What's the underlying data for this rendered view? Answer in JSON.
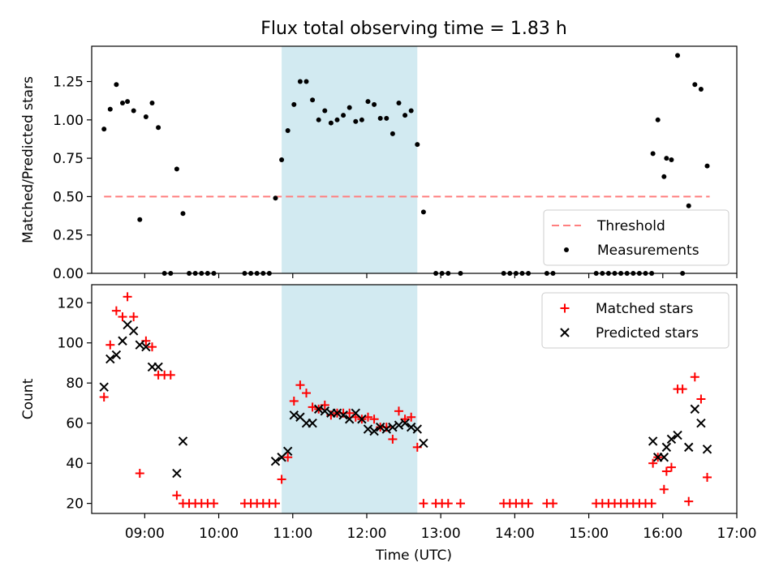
{
  "title": "Flux total observing time = 1.83 h",
  "xlabel": "Time (UTC)",
  "colors": {
    "threshold": "#ff7f7f",
    "highlight": "#add8e6",
    "matched": "#ff0000",
    "predicted": "#000000",
    "measurements": "#000000"
  },
  "chart_data": [
    {
      "type": "scatter",
      "ylabel": "Matched/Predicted stars",
      "xlim": [
        "08:17",
        "17:00"
      ],
      "ylim": [
        0,
        1.48
      ],
      "yticks": [
        0,
        0.25,
        0.5,
        0.75,
        1.0,
        1.25
      ],
      "ytick_labels": [
        "0.00",
        "0.25",
        "0.50",
        "0.75",
        "1.00",
        "1.25"
      ],
      "xticks": [
        "09:00",
        "10:00",
        "11:00",
        "12:00",
        "13:00",
        "14:00",
        "15:00",
        "16:00",
        "17:00"
      ],
      "highlight_span": [
        "10:51",
        "12:41"
      ],
      "grid": false,
      "legend": {
        "position": "lower-right",
        "entries": [
          "Threshold",
          "Measurements"
        ]
      },
      "threshold": {
        "name": "Threshold",
        "value": 0.5,
        "x_range": [
          "08:27",
          "16:38"
        ],
        "style": "dashed"
      },
      "series": [
        {
          "name": "Measurements",
          "marker": "dot",
          "points": [
            [
              "08:27",
              0.94
            ],
            [
              "08:32",
              1.07
            ],
            [
              "08:37",
              1.23
            ],
            [
              "08:42",
              1.11
            ],
            [
              "08:46",
              1.12
            ],
            [
              "08:51",
              1.06
            ],
            [
              "08:56",
              0.35
            ],
            [
              "09:01",
              1.02
            ],
            [
              "09:06",
              1.11
            ],
            [
              "09:11",
              0.95
            ],
            [
              "09:16",
              0.0
            ],
            [
              "09:21",
              0.0
            ],
            [
              "09:26",
              0.68
            ],
            [
              "09:31",
              0.39
            ],
            [
              "09:36",
              0.0
            ],
            [
              "09:41",
              0.0
            ],
            [
              "09:46",
              0.0
            ],
            [
              "09:51",
              0.0
            ],
            [
              "09:56",
              0.0
            ],
            [
              "10:21",
              0.0
            ],
            [
              "10:26",
              0.0
            ],
            [
              "10:31",
              0.0
            ],
            [
              "10:36",
              0.0
            ],
            [
              "10:41",
              0.0
            ],
            [
              "10:46",
              0.49
            ],
            [
              "10:51",
              0.74
            ],
            [
              "10:56",
              0.93
            ],
            [
              "11:01",
              1.1
            ],
            [
              "11:06",
              1.25
            ],
            [
              "11:11",
              1.25
            ],
            [
              "11:16",
              1.13
            ],
            [
              "11:21",
              1.0
            ],
            [
              "11:26",
              1.06
            ],
            [
              "11:31",
              0.98
            ],
            [
              "11:36",
              1.0
            ],
            [
              "11:41",
              1.03
            ],
            [
              "11:46",
              1.08
            ],
            [
              "11:51",
              0.99
            ],
            [
              "11:56",
              1.0
            ],
            [
              "12:01",
              1.12
            ],
            [
              "12:06",
              1.1
            ],
            [
              "12:11",
              1.01
            ],
            [
              "12:16",
              1.01
            ],
            [
              "12:21",
              0.91
            ],
            [
              "12:26",
              1.11
            ],
            [
              "12:31",
              1.03
            ],
            [
              "12:36",
              1.06
            ],
            [
              "12:41",
              0.84
            ],
            [
              "12:46",
              0.4
            ],
            [
              "12:56",
              0.0
            ],
            [
              "13:01",
              0.0
            ],
            [
              "13:06",
              0.0
            ],
            [
              "13:16",
              0.0
            ],
            [
              "13:51",
              0.0
            ],
            [
              "13:56",
              0.0
            ],
            [
              "14:01",
              0.0
            ],
            [
              "14:06",
              0.0
            ],
            [
              "14:11",
              0.0
            ],
            [
              "14:26",
              0.0
            ],
            [
              "14:31",
              0.0
            ],
            [
              "15:06",
              0.0
            ],
            [
              "15:11",
              0.0
            ],
            [
              "15:16",
              0.0
            ],
            [
              "15:21",
              0.0
            ],
            [
              "15:26",
              0.0
            ],
            [
              "15:31",
              0.0
            ],
            [
              "15:36",
              0.0
            ],
            [
              "15:41",
              0.0
            ],
            [
              "15:46",
              0.0
            ],
            [
              "15:51",
              0.0
            ],
            [
              "15:52",
              0.78
            ],
            [
              "15:56",
              1.0
            ],
            [
              "16:01",
              0.63
            ],
            [
              "16:03",
              0.75
            ],
            [
              "16:07",
              0.74
            ],
            [
              "16:12",
              1.42
            ],
            [
              "16:16",
              0.0
            ],
            [
              "16:21",
              0.44
            ],
            [
              "16:26",
              1.23
            ],
            [
              "16:31",
              1.2
            ],
            [
              "16:36",
              0.7
            ]
          ]
        }
      ]
    },
    {
      "type": "scatter",
      "ylabel": "Count",
      "xlim": [
        "08:17",
        "17:00"
      ],
      "ylim": [
        15,
        129
      ],
      "yticks": [
        20,
        40,
        60,
        80,
        100,
        120
      ],
      "ytick_labels": [
        "20",
        "40",
        "60",
        "80",
        "100",
        "120"
      ],
      "xticks": [
        "09:00",
        "10:00",
        "11:00",
        "12:00",
        "13:00",
        "14:00",
        "15:00",
        "16:00",
        "17:00"
      ],
      "xtick_labels": [
        "09:00",
        "10:00",
        "11:00",
        "12:00",
        "13:00",
        "14:00",
        "15:00",
        "16:00",
        "17:00"
      ],
      "highlight_span": [
        "10:51",
        "12:41"
      ],
      "grid": false,
      "legend": {
        "position": "top-right",
        "entries": [
          "Matched stars",
          "Predicted stars"
        ]
      },
      "series": [
        {
          "name": "Matched stars",
          "marker": "plus",
          "points": [
            [
              "08:27",
              73
            ],
            [
              "08:32",
              99
            ],
            [
              "08:37",
              116
            ],
            [
              "08:42",
              113
            ],
            [
              "08:46",
              123
            ],
            [
              "08:51",
              113
            ],
            [
              "08:56",
              35
            ],
            [
              "09:01",
              101
            ],
            [
              "09:06",
              98
            ],
            [
              "09:11",
              84
            ],
            [
              "09:16",
              84
            ],
            [
              "09:21",
              84
            ],
            [
              "09:26",
              24
            ],
            [
              "09:31",
              20
            ],
            [
              "09:36",
              20
            ],
            [
              "09:41",
              20
            ],
            [
              "09:46",
              20
            ],
            [
              "09:51",
              20
            ],
            [
              "09:56",
              20
            ],
            [
              "10:21",
              20
            ],
            [
              "10:26",
              20
            ],
            [
              "10:31",
              20
            ],
            [
              "10:36",
              20
            ],
            [
              "10:41",
              20
            ],
            [
              "10:46",
              20
            ],
            [
              "10:51",
              32
            ],
            [
              "10:56",
              43
            ],
            [
              "11:01",
              71
            ],
            [
              "11:06",
              79
            ],
            [
              "11:11",
              75
            ],
            [
              "11:16",
              68
            ],
            [
              "11:21",
              67
            ],
            [
              "11:26",
              69
            ],
            [
              "11:31",
              64
            ],
            [
              "11:36",
              65
            ],
            [
              "11:41",
              65
            ],
            [
              "11:46",
              65
            ],
            [
              "11:51",
              63
            ],
            [
              "11:56",
              62
            ],
            [
              "12:01",
              63
            ],
            [
              "12:06",
              62
            ],
            [
              "12:11",
              58
            ],
            [
              "12:16",
              58
            ],
            [
              "12:21",
              52
            ],
            [
              "12:26",
              66
            ],
            [
              "12:31",
              62
            ],
            [
              "12:36",
              63
            ],
            [
              "12:41",
              48
            ],
            [
              "12:46",
              20
            ],
            [
              "12:56",
              20
            ],
            [
              "13:01",
              20
            ],
            [
              "13:06",
              20
            ],
            [
              "13:16",
              20
            ],
            [
              "13:51",
              20
            ],
            [
              "13:56",
              20
            ],
            [
              "14:01",
              20
            ],
            [
              "14:06",
              20
            ],
            [
              "14:11",
              20
            ],
            [
              "14:26",
              20
            ],
            [
              "14:31",
              20
            ],
            [
              "15:06",
              20
            ],
            [
              "15:11",
              20
            ],
            [
              "15:16",
              20
            ],
            [
              "15:21",
              20
            ],
            [
              "15:26",
              20
            ],
            [
              "15:31",
              20
            ],
            [
              "15:36",
              20
            ],
            [
              "15:41",
              20
            ],
            [
              "15:46",
              20
            ],
            [
              "15:51",
              20
            ],
            [
              "15:52",
              40
            ],
            [
              "15:56",
              43
            ],
            [
              "16:01",
              27
            ],
            [
              "16:03",
              36
            ],
            [
              "16:07",
              38
            ],
            [
              "16:12",
              77
            ],
            [
              "16:16",
              77
            ],
            [
              "16:21",
              21
            ],
            [
              "16:26",
              83
            ],
            [
              "16:31",
              72
            ],
            [
              "16:36",
              33
            ]
          ]
        },
        {
          "name": "Predicted stars",
          "marker": "x",
          "points": [
            [
              "08:27",
              78
            ],
            [
              "08:32",
              92
            ],
            [
              "08:37",
              94
            ],
            [
              "08:42",
              101
            ],
            [
              "08:46",
              109
            ],
            [
              "08:51",
              106
            ],
            [
              "08:56",
              99
            ],
            [
              "09:01",
              98
            ],
            [
              "09:06",
              88
            ],
            [
              "09:11",
              88
            ],
            [
              "09:26",
              35
            ],
            [
              "09:31",
              51
            ],
            [
              "10:46",
              41
            ],
            [
              "10:51",
              43
            ],
            [
              "10:56",
              46
            ],
            [
              "11:01",
              64
            ],
            [
              "11:06",
              63
            ],
            [
              "11:11",
              60
            ],
            [
              "11:16",
              60
            ],
            [
              "11:21",
              67
            ],
            [
              "11:26",
              66
            ],
            [
              "11:31",
              65
            ],
            [
              "11:36",
              65
            ],
            [
              "11:41",
              64
            ],
            [
              "11:46",
              62
            ],
            [
              "11:51",
              65
            ],
            [
              "11:56",
              62
            ],
            [
              "12:01",
              57
            ],
            [
              "12:06",
              56
            ],
            [
              "12:11",
              58
            ],
            [
              "12:16",
              57
            ],
            [
              "12:21",
              58
            ],
            [
              "12:26",
              59
            ],
            [
              "12:31",
              60
            ],
            [
              "12:36",
              58
            ],
            [
              "12:41",
              57
            ],
            [
              "12:46",
              50
            ],
            [
              "15:52",
              51
            ],
            [
              "15:56",
              43
            ],
            [
              "16:01",
              43
            ],
            [
              "16:03",
              48
            ],
            [
              "16:07",
              52
            ],
            [
              "16:12",
              54
            ],
            [
              "16:21",
              48
            ],
            [
              "16:26",
              67
            ],
            [
              "16:31",
              60
            ],
            [
              "16:36",
              47
            ]
          ]
        }
      ]
    }
  ]
}
